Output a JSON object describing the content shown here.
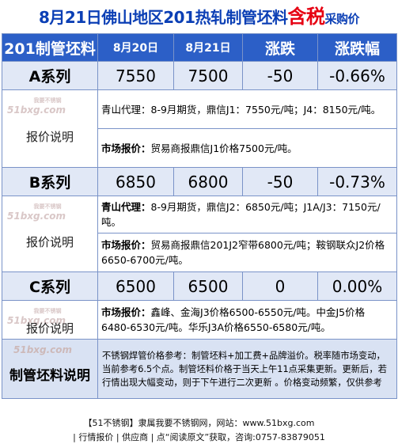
{
  "title": {
    "prefix": "8月21日佛山地区201热轧制管坯料",
    "highlight": "含税",
    "suffix": "采购价"
  },
  "header": {
    "product": "201制管坯料",
    "date1": "8月20日",
    "date2": "8月21日",
    "change": "涨跌",
    "change_pct": "涨跌幅"
  },
  "watermark": {
    "logo": "51bxg.com",
    "tagline": "我要不锈钢"
  },
  "rows": [
    {
      "name": "A系列",
      "p1": "7550",
      "p2": "7500",
      "chg": "-50",
      "pct": "-0.66%",
      "note_label": "报价说明",
      "note1_label": "",
      "note1": "青山代理：8-9月期货，鼎信J1：7550元/吨；J4：8150元/吨。",
      "note2_label": "市场报价：",
      "note2": "贸易商报鼎信J1价格7500元/吨。"
    },
    {
      "name": "B系列",
      "p1": "6850",
      "p2": "6800",
      "chg": "-50",
      "pct": "-0.73%",
      "note_label": "报价说明",
      "note1_label": "青山代理：",
      "note1": "8-9月期货，鼎信J2：6850元/吨；J1A/J3：7150元/吨。",
      "note2_label": "市场报价：",
      "note2": "贸易商报鼎信201J2窄带6800元/吨；鞍钢联众J2价格6650-6700元/吨。"
    },
    {
      "name": "C系列",
      "p1": "6500",
      "p2": "6500",
      "chg": "0",
      "pct": "0.00%",
      "note_label": "报价说明",
      "note1_label": "市场报价：",
      "note1": "鑫峰、金海J3价格6500-6550元/吨。中金J5价格6480-6530元/吨。华乐J3A价格6550-6580元/吨。"
    }
  ],
  "summary": {
    "label": "制管坯料说明",
    "text": "不锈钢焊管价格参考：制管坯料+加工费+品牌溢价。税率随市场变动，当前参考6.5个点。制管坯料价格于当天上午11点采集更新。更新后，若行情出现大幅变动，则于下午进行二次更新 。价格变动频繁，仅供参考"
  },
  "footer": {
    "line1": "【51不锈钢】隶属我要不锈钢网，网站：www.51bxg.com",
    "line2": "| 行情报价 | 供应商 | 点“阅读原文”获取，咨询:0757-83879051"
  },
  "colors": {
    "title_blue": "#0b3fb5",
    "highlight_red": "#e60012",
    "header_bg": "#2c5fc7",
    "series_bg": "#e1e8f6",
    "summary_bg": "#d9e2f3"
  }
}
